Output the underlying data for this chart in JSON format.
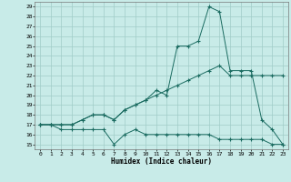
{
  "xlabel": "Humidex (Indice chaleur)",
  "ylabel": "",
  "background_color": "#c8ebe8",
  "grid_color": "#a0ccc8",
  "line_color": "#1a6b60",
  "x_values": [
    0,
    1,
    2,
    3,
    4,
    5,
    6,
    7,
    8,
    9,
    10,
    11,
    12,
    13,
    14,
    15,
    16,
    17,
    18,
    19,
    20,
    21,
    22,
    23
  ],
  "line1": [
    17,
    17,
    16.5,
    16.5,
    16.5,
    16.5,
    16.5,
    15,
    16,
    16.5,
    16,
    16,
    16,
    16,
    16,
    16,
    16,
    15.5,
    15.5,
    15.5,
    15.5,
    15.5,
    15,
    15
  ],
  "line2": [
    17,
    17,
    17,
    17,
    17.5,
    18,
    18,
    17.5,
    18.5,
    19,
    19.5,
    20,
    20.5,
    21,
    21.5,
    22,
    22.5,
    23,
    22,
    22,
    22,
    22,
    22,
    22
  ],
  "line3": [
    17,
    17,
    17,
    17,
    17.5,
    18,
    18,
    17.5,
    18.5,
    19,
    19.5,
    20.5,
    20,
    25,
    25,
    25.5,
    29,
    28.5,
    22.5,
    22.5,
    22.5,
    17.5,
    16.5,
    15
  ],
  "ylim": [
    14.5,
    29.5
  ],
  "xlim": [
    -0.5,
    23.5
  ],
  "yticks": [
    15,
    16,
    17,
    18,
    19,
    20,
    21,
    22,
    23,
    24,
    25,
    26,
    27,
    28,
    29
  ],
  "xticks": [
    0,
    1,
    2,
    3,
    4,
    5,
    6,
    7,
    8,
    9,
    10,
    11,
    12,
    13,
    14,
    15,
    16,
    17,
    18,
    19,
    20,
    21,
    22,
    23
  ]
}
